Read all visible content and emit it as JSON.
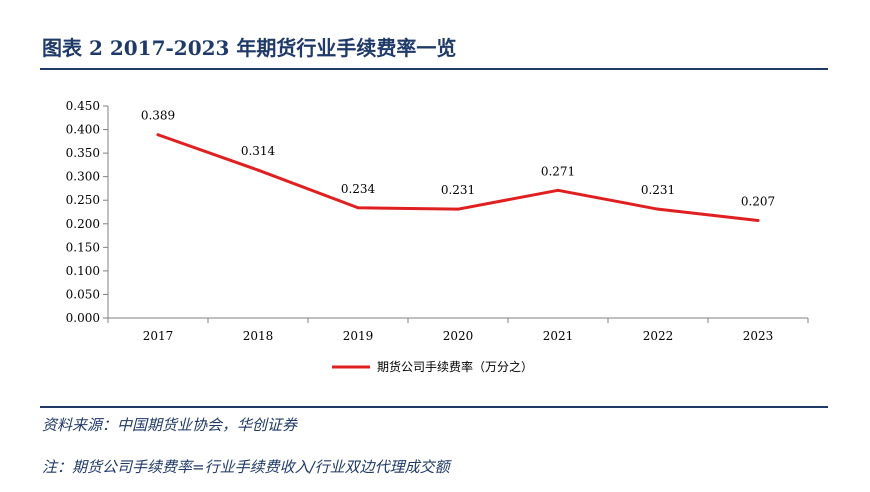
{
  "figure": {
    "title": "图表 2   2017-2023 年期货行业手续费率一览",
    "source": "资料来源：中国期货业协会，华创证券",
    "note": "注：期货公司手续费率=行业手续费收入/行业双边代理成交额"
  },
  "chart_data": {
    "type": "line",
    "categories": [
      "2017",
      "2018",
      "2019",
      "2020",
      "2021",
      "2022",
      "2023"
    ],
    "series": [
      {
        "name": "期货公司手续费率（万分之）",
        "values": [
          0.389,
          0.314,
          0.234,
          0.231,
          0.271,
          0.231,
          0.207
        ],
        "color": "#e02020"
      }
    ],
    "data_labels": [
      "0.389",
      "0.314",
      "0.234",
      "0.231",
      "0.271",
      "0.231",
      "0.207"
    ],
    "ylim": [
      0,
      0.45
    ],
    "yticks": [
      "0.000",
      "0.050",
      "0.100",
      "0.150",
      "0.200",
      "0.250",
      "0.300",
      "0.350",
      "0.400",
      "0.450"
    ],
    "grid": false,
    "legend_position": "bottom-center",
    "xlabel": "",
    "ylabel": ""
  }
}
